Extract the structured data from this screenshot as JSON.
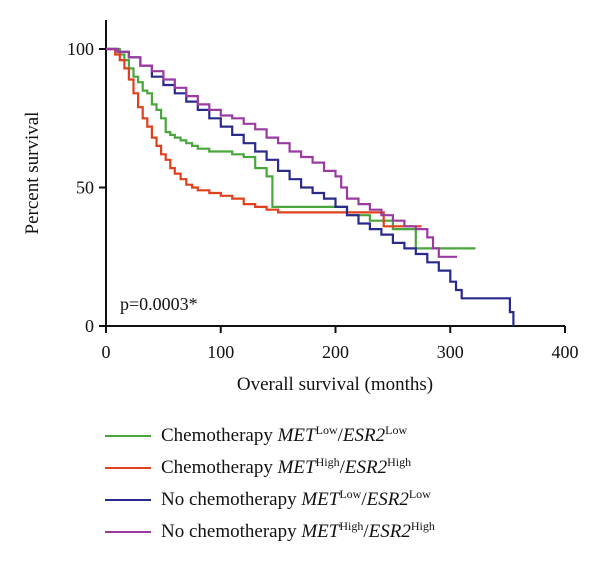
{
  "chart_data": {
    "type": "line",
    "step": true,
    "xlabel": "Overall survival (months)",
    "ylabel": "Percent survival",
    "xlim": [
      0,
      400
    ],
    "ylim": [
      0,
      100
    ],
    "xticks": [
      "0",
      "100",
      "200",
      "300",
      "400"
    ],
    "yticks": [
      "0",
      "50",
      "100"
    ],
    "annotation": "p=0.0003*",
    "grid": false,
    "legend_position": "bottom",
    "series": [
      {
        "name": "Chemotherapy MET Low/ESR2 Low",
        "legend": {
          "prefix": "Chemotherapy ",
          "gene1": "MET",
          "sup1": "Low",
          "sep": "/",
          "gene2": "ESR2",
          "sup2": "Low"
        },
        "color": "#4aa63c",
        "x": [
          0,
          8,
          12,
          16,
          20,
          24,
          28,
          32,
          36,
          40,
          44,
          48,
          52,
          56,
          60,
          65,
          70,
          75,
          80,
          90,
          100,
          110,
          120,
          130,
          140,
          145,
          150,
          160,
          170,
          180,
          190,
          200,
          210,
          220,
          230,
          240,
          250,
          260,
          270,
          280,
          290,
          300,
          310,
          322
        ],
        "y": [
          100,
          100,
          98,
          96,
          93,
          90,
          88,
          85,
          84,
          80,
          78,
          75,
          70,
          69,
          68,
          67,
          66,
          65,
          64,
          63,
          63,
          62,
          61,
          57,
          54,
          43,
          43,
          43,
          43,
          43,
          43,
          43,
          40,
          40,
          38,
          38,
          35,
          35,
          28,
          28,
          28,
          28,
          28,
          28
        ]
      },
      {
        "name": "Chemotherapy MET High/ESR2 High",
        "legend": {
          "prefix": "Chemotherapy ",
          "gene1": "MET",
          "sup1": "High",
          "sep": "/",
          "gene2": "ESR2",
          "sup2": "High"
        },
        "color": "#e0401e",
        "x": [
          0,
          8,
          12,
          16,
          20,
          24,
          28,
          32,
          36,
          40,
          44,
          48,
          52,
          56,
          60,
          65,
          70,
          75,
          80,
          90,
          100,
          110,
          120,
          130,
          140,
          150,
          160,
          170,
          180,
          190,
          200,
          210,
          220,
          230,
          242,
          250,
          260,
          270,
          275
        ],
        "y": [
          100,
          98,
          96,
          93,
          89,
          84,
          79,
          75,
          72,
          68,
          65,
          62,
          60,
          57,
          55,
          53,
          51,
          50,
          49,
          48,
          47,
          46,
          44,
          43,
          42,
          41,
          41,
          41,
          41,
          41,
          41,
          41,
          41,
          41,
          36,
          36,
          36,
          36,
          36
        ]
      },
      {
        "name": "No chemotherapy MET Low/ESR2 Low",
        "legend": {
          "prefix": "No chemotherapy ",
          "gene1": "MET",
          "sup1": "Low",
          "sep": "/",
          "gene2": "ESR2",
          "sup2": "Low"
        },
        "color": "#2a2a8c",
        "x": [
          0,
          10,
          20,
          30,
          40,
          50,
          60,
          70,
          80,
          90,
          100,
          110,
          120,
          130,
          140,
          150,
          160,
          170,
          180,
          190,
          200,
          210,
          220,
          230,
          240,
          250,
          260,
          270,
          280,
          290,
          300,
          305,
          310,
          320,
          330,
          340,
          350,
          352,
          355
        ],
        "y": [
          100,
          99,
          97,
          94,
          90,
          87,
          84,
          81,
          78,
          75,
          72,
          69,
          66,
          63,
          60,
          56,
          53,
          50,
          48,
          46,
          43,
          40,
          37,
          35,
          33,
          30,
          28,
          26,
          23,
          20,
          16,
          13,
          10,
          10,
          10,
          10,
          10,
          5,
          0
        ]
      },
      {
        "name": "No chemotherapy MET High/ESR2 High",
        "legend": {
          "prefix": "No chemotherapy ",
          "gene1": "MET",
          "sup1": "High",
          "sep": "/",
          "gene2": "ESR2",
          "sup2": "High"
        },
        "color": "#9b3aa0",
        "x": [
          0,
          10,
          20,
          30,
          40,
          50,
          60,
          70,
          80,
          90,
          100,
          110,
          120,
          130,
          140,
          150,
          160,
          170,
          180,
          190,
          200,
          205,
          210,
          220,
          230,
          240,
          250,
          260,
          270,
          280,
          285,
          290,
          300,
          306
        ],
        "y": [
          100,
          99,
          97,
          94,
          92,
          89,
          86,
          83,
          80,
          78,
          76,
          75,
          73,
          71,
          68,
          66,
          63,
          61,
          59,
          56,
          54,
          50,
          46,
          44,
          42,
          40,
          38,
          36,
          35,
          32,
          28,
          25,
          25,
          25
        ]
      }
    ]
  }
}
